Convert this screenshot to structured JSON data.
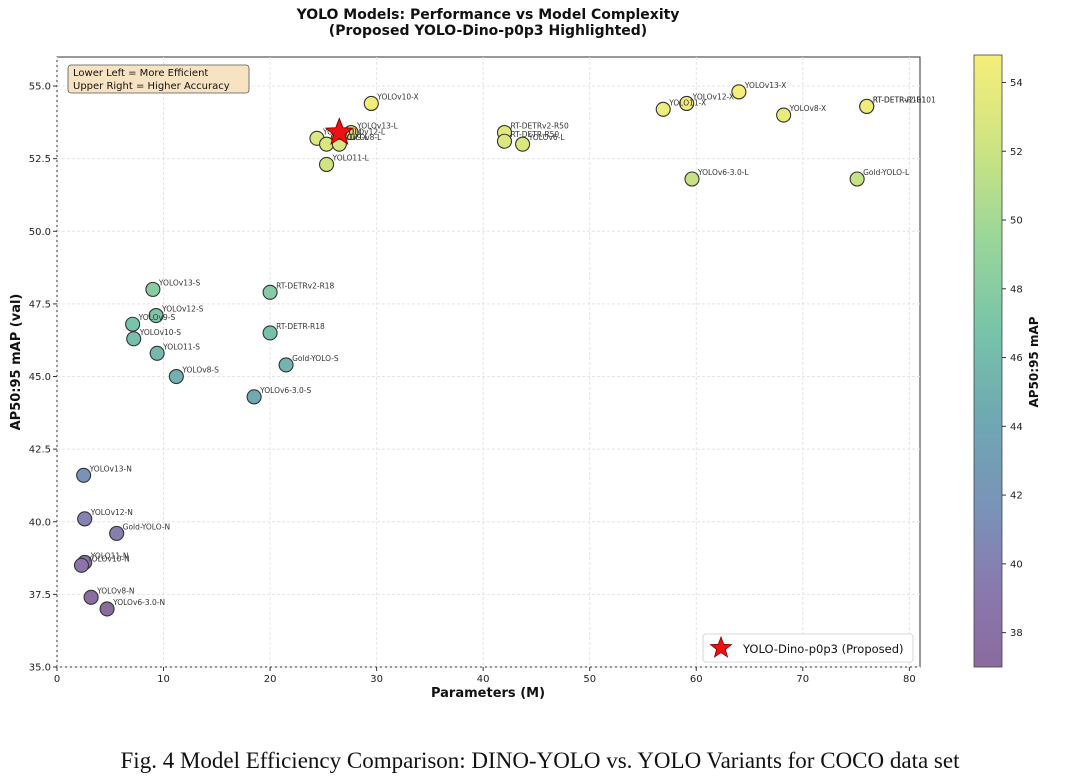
{
  "caption": "Fig. 4 Model Efficiency Comparison: DINO-YOLO vs. YOLO Variants for COCO data set",
  "chart_data": {
    "type": "scatter",
    "title": "YOLO Models: Performance vs Model Complexity",
    "subtitle": "(Proposed YOLO-Dino-p0p3 Highlighted)",
    "xlabel": "Parameters (M)",
    "ylabel": "AP50:95 mAP (val)",
    "colorbar_label": "AP50:95 mAP",
    "xlim": [
      0,
      81
    ],
    "ylim": [
      35.0,
      56.0
    ],
    "xticks": [
      0,
      10,
      20,
      30,
      40,
      50,
      60,
      70,
      80
    ],
    "yticks": [
      35.0,
      37.5,
      40.0,
      42.5,
      45.0,
      47.5,
      50.0,
      52.5,
      55.0
    ],
    "colorbar_range": [
      37,
      54.8
    ],
    "colorbar_ticks": [
      38,
      40,
      42,
      44,
      46,
      48,
      50,
      52,
      54
    ],
    "grid": true,
    "colormap": "viridis",
    "note_lines": [
      "Lower Left = More Efficient",
      "Upper Right = Higher Accuracy"
    ],
    "note_placement": "top-left",
    "legend": {
      "label": "YOLO-Dino-p0p3 (Proposed)",
      "placement": "bottom-right"
    },
    "points": [
      {
        "name": "YOLOv13-N",
        "x": 2.5,
        "y": 41.6
      },
      {
        "name": "YOLOv12-N",
        "x": 2.6,
        "y": 40.1
      },
      {
        "name": "Gold-YOLO-N",
        "x": 5.6,
        "y": 39.6
      },
      {
        "name": "YOLO11-N",
        "x": 2.6,
        "y": 38.6
      },
      {
        "name": "YOLOv10-N",
        "x": 2.3,
        "y": 38.5
      },
      {
        "name": "YOLOv8-N",
        "x": 3.2,
        "y": 37.4
      },
      {
        "name": "YOLOv6-3.0-N",
        "x": 4.7,
        "y": 37.0
      },
      {
        "name": "YOLOv13-S",
        "x": 9.0,
        "y": 48.0
      },
      {
        "name": "YOLOv12-S",
        "x": 9.3,
        "y": 47.1
      },
      {
        "name": "YOLOv9-S",
        "x": 7.1,
        "y": 46.8
      },
      {
        "name": "YOLOv10-S",
        "x": 7.2,
        "y": 46.3
      },
      {
        "name": "YOLO11-S",
        "x": 9.4,
        "y": 45.8
      },
      {
        "name": "YOLOv8-S",
        "x": 11.2,
        "y": 45.0
      },
      {
        "name": "YOLOv6-3.0-S",
        "x": 18.5,
        "y": 44.3
      },
      {
        "name": "Gold-YOLO-S",
        "x": 21.5,
        "y": 45.4
      },
      {
        "name": "RT-DETR-R18",
        "x": 20.0,
        "y": 46.5
      },
      {
        "name": "RT-DETRv2-R18",
        "x": 20.0,
        "y": 47.9
      },
      {
        "name": "YOLOv10-X",
        "x": 29.5,
        "y": 54.4
      },
      {
        "name": "YOLOv13-L",
        "x": 27.6,
        "y": 53.4
      },
      {
        "name": "YOLOv12-L",
        "x": 26.4,
        "y": 53.2
      },
      {
        "name": "YOLOv10-L",
        "x": 24.4,
        "y": 53.2
      },
      {
        "name": "YOLOv9-L",
        "x": 25.3,
        "y": 53.0
      },
      {
        "name": "YOLOv8-L",
        "x": 26.5,
        "y": 53.0
      },
      {
        "name": "YOLO11-L",
        "x": 25.3,
        "y": 52.3
      },
      {
        "name": "RT-DETRv2-R50",
        "x": 42.0,
        "y": 53.4
      },
      {
        "name": "RT-DETR-R50",
        "x": 42.0,
        "y": 53.1
      },
      {
        "name": "YOLOv6-L",
        "x": 43.7,
        "y": 53.0
      },
      {
        "name": "YOLO11-X",
        "x": 56.9,
        "y": 54.2
      },
      {
        "name": "YOLOv12-X",
        "x": 59.1,
        "y": 54.4
      },
      {
        "name": "YOLOv13-X",
        "x": 64.0,
        "y": 54.8
      },
      {
        "name": "YOLOv8-X",
        "x": 68.2,
        "y": 54.0
      },
      {
        "name": "RT-DETR-R101",
        "x": 76.0,
        "y": 54.3
      },
      {
        "name": "RT-DETRv2-R101",
        "x": 76.0,
        "y": 54.3
      },
      {
        "name": "YOLOv6-3.0-L",
        "x": 59.6,
        "y": 51.8
      },
      {
        "name": "Gold-YOLO-L",
        "x": 75.1,
        "y": 51.8
      }
    ],
    "proposed": {
      "name": "YOLO-Dino-p0p3",
      "x": 26.5,
      "y": 53.4
    }
  }
}
